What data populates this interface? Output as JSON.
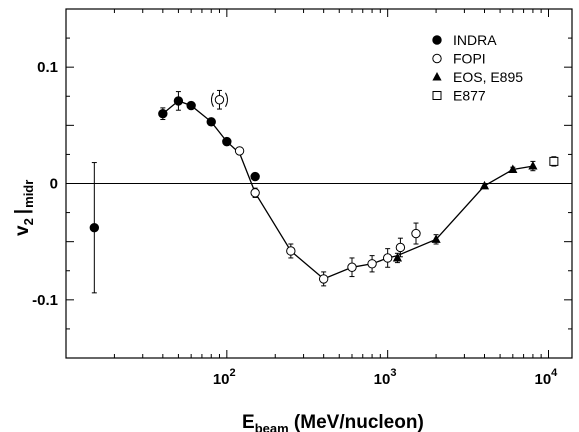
{
  "chart_data": {
    "type": "scatter",
    "xlabel": {
      "main": "E",
      "sub": "beam",
      "rest": " (MeV/nucleon)"
    },
    "ylabel": {
      "main": "v",
      "sub1": "2",
      "bar": "|",
      "sub2": "midr"
    },
    "x_scale": "log",
    "xlim": [
      10,
      14000
    ],
    "ylim": [
      -0.15,
      0.15
    ],
    "x_ticks": [
      {
        "value": 100,
        "base": "10",
        "exp": "2"
      },
      {
        "value": 1000,
        "base": "10",
        "exp": "3"
      },
      {
        "value": 10000,
        "base": "10",
        "exp": "4"
      }
    ],
    "y_ticks": [
      {
        "value": 0.1,
        "label": "0.1"
      },
      {
        "value": 0,
        "label": "0"
      },
      {
        "value": -0.1,
        "label": "-0.1"
      }
    ],
    "zero_line": true,
    "legend_position": "top-right",
    "series": [
      {
        "name": "INDRA",
        "marker": "filled-circle",
        "points": [
          {
            "x": 15,
            "y": -0.038,
            "err": 0.056
          },
          {
            "x": 40,
            "y": 0.06,
            "err": 0.005
          },
          {
            "x": 50,
            "y": 0.071,
            "err": 0.008
          },
          {
            "x": 60,
            "y": 0.067,
            "err": 0.003
          },
          {
            "x": 80,
            "y": 0.053,
            "err": 0.003
          },
          {
            "x": 100,
            "y": 0.036,
            "err": 0.003
          },
          {
            "x": 150,
            "y": 0.006,
            "err": 0.003
          }
        ]
      },
      {
        "name": "FOPI",
        "marker": "open-circle",
        "points": [
          {
            "x": 90,
            "y": 0.072,
            "err": 0.008,
            "bracketed": true
          },
          {
            "x": 120,
            "y": 0.028,
            "err": 0.003
          },
          {
            "x": 150,
            "y": -0.008,
            "err": 0.004
          },
          {
            "x": 250,
            "y": -0.058,
            "err": 0.006
          },
          {
            "x": 400,
            "y": -0.082,
            "err": 0.006
          },
          {
            "x": 600,
            "y": -0.072,
            "err": 0.008
          },
          {
            "x": 800,
            "y": -0.069,
            "err": 0.007
          },
          {
            "x": 1000,
            "y": -0.064,
            "err": 0.008
          },
          {
            "x": 1200,
            "y": -0.055,
            "err": 0.008
          },
          {
            "x": 1500,
            "y": -0.043,
            "err": 0.009
          }
        ]
      },
      {
        "name": "EOS, E895",
        "marker": "filled-triangle",
        "points": [
          {
            "x": 1150,
            "y": -0.064,
            "err": 0.004
          },
          {
            "x": 2000,
            "y": -0.048,
            "err": 0.004
          },
          {
            "x": 4000,
            "y": -0.002,
            "err": 0.002
          },
          {
            "x": 6000,
            "y": 0.012,
            "err": 0.002
          },
          {
            "x": 8000,
            "y": 0.015,
            "err": 0.004
          }
        ]
      },
      {
        "name": "E877",
        "marker": "open-square",
        "points": [
          {
            "x": 10800,
            "y": 0.019,
            "err": 0.004
          }
        ]
      }
    ],
    "curve": [
      {
        "x": 40,
        "y": 0.06
      },
      {
        "x": 50,
        "y": 0.071
      },
      {
        "x": 60,
        "y": 0.067
      },
      {
        "x": 80,
        "y": 0.053
      },
      {
        "x": 100,
        "y": 0.036
      },
      {
        "x": 120,
        "y": 0.026
      },
      {
        "x": 150,
        "y": -0.008
      },
      {
        "x": 250,
        "y": -0.058
      },
      {
        "x": 400,
        "y": -0.082
      },
      {
        "x": 600,
        "y": -0.072
      },
      {
        "x": 800,
        "y": -0.069
      },
      {
        "x": 1000,
        "y": -0.064
      },
      {
        "x": 1150,
        "y": -0.062
      },
      {
        "x": 2000,
        "y": -0.048
      },
      {
        "x": 4000,
        "y": -0.002
      },
      {
        "x": 6000,
        "y": 0.012
      },
      {
        "x": 8000,
        "y": 0.015
      }
    ]
  }
}
